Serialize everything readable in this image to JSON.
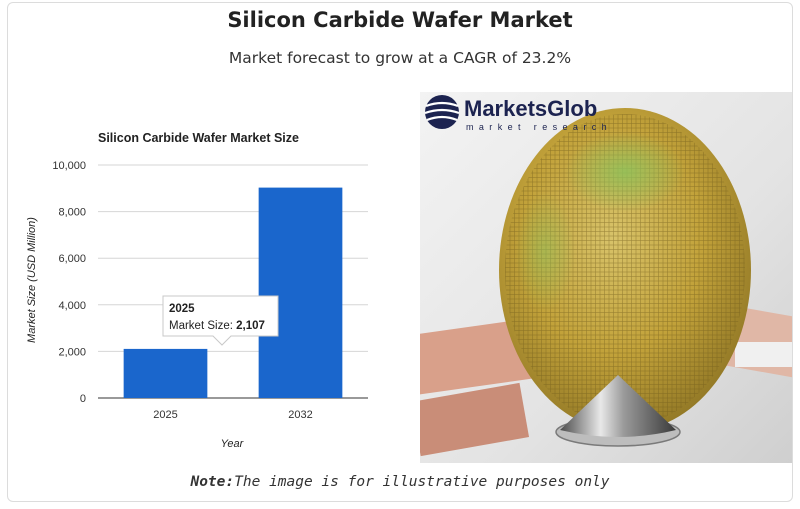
{
  "header": {
    "title": "Silicon Carbide Wafer Market",
    "subtitle": "Market forecast to grow at a CAGR of 23.2%"
  },
  "chart_data": {
    "type": "bar",
    "title": "Silicon Carbide Wafer Market Size",
    "xlabel": "Year",
    "ylabel": "Market Size (USD Million)",
    "categories": [
      "2025",
      "2032"
    ],
    "values": [
      2107,
      9030
    ],
    "ylim": [
      0,
      10000
    ],
    "yticks": [
      0,
      2000,
      4000,
      6000,
      8000,
      10000
    ],
    "ytick_labels": [
      "0",
      "2,000",
      "4,000",
      "6,000",
      "8,000",
      "10,000"
    ],
    "bar_color": "#1a66cc",
    "grid": true,
    "legend": "none",
    "tooltip": {
      "title": "2025",
      "label": "Market Size: ",
      "value": "2,107"
    }
  },
  "image": {
    "logo_name": "MarketsGlob",
    "logo_tagline": "market research",
    "subject": "wafer-photo"
  },
  "note": {
    "prefix": "Note:",
    "text": "The image is for illustrative purposes only"
  }
}
